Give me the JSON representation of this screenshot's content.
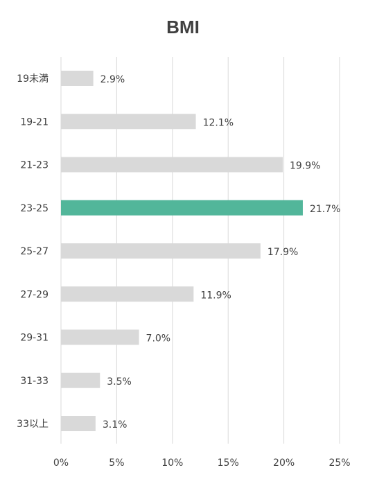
{
  "chart_data": {
    "type": "bar",
    "orientation": "horizontal",
    "title": "BMI",
    "categories": [
      "19未満",
      "19-21",
      "21-23",
      "23-25",
      "25-27",
      "27-29",
      "29-31",
      "31-33",
      "33以上"
    ],
    "values": [
      2.9,
      12.1,
      19.9,
      21.7,
      17.9,
      11.9,
      7.0,
      3.5,
      3.1
    ],
    "data_labels": [
      "2.9%",
      "12.1%",
      "19.9%",
      "21.7%",
      "17.9%",
      "11.9%",
      "7.0%",
      "3.5%",
      "3.1%"
    ],
    "highlight_category": "23-25",
    "xlim": [
      0,
      25
    ],
    "xticks": [
      0,
      5,
      10,
      15,
      20,
      25
    ],
    "xtick_labels": [
      "0%",
      "5%",
      "10%",
      "15%",
      "20%",
      "25%"
    ],
    "grid": "vertical",
    "legend": "none",
    "colors": {
      "bar": "#d9d9d9",
      "highlight": "#52b69a",
      "grid": "#d9d9d9",
      "text": "#404040"
    }
  }
}
